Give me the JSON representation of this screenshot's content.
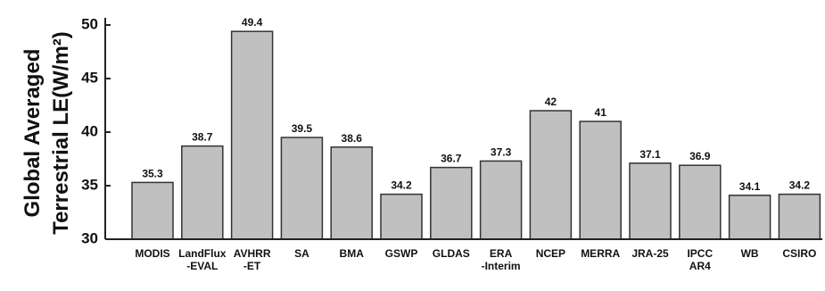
{
  "chart_data": {
    "type": "bar",
    "y_label_lines": [
      "Global Averaged",
      "Terrestrial LE(W/m²)"
    ],
    "categories": [
      "MODIS",
      "LandFlux\n-EVAL",
      "AVHRR\n-ET",
      "SA",
      "BMA",
      "GSWP",
      "GLDAS",
      "ERA\n-Interim",
      "NCEP",
      "MERRA",
      "JRA-25",
      "IPCC\nAR4",
      "WB",
      "CSIRO"
    ],
    "values": [
      35.3,
      38.7,
      49.4,
      39.5,
      38.6,
      34.2,
      36.7,
      37.3,
      42,
      41,
      37.1,
      36.9,
      34.1,
      34.2
    ],
    "color": "#c0c0c0",
    "ylim": [
      30,
      50
    ],
    "yticks": [
      30,
      35,
      40,
      45,
      50
    ],
    "grid": false
  }
}
